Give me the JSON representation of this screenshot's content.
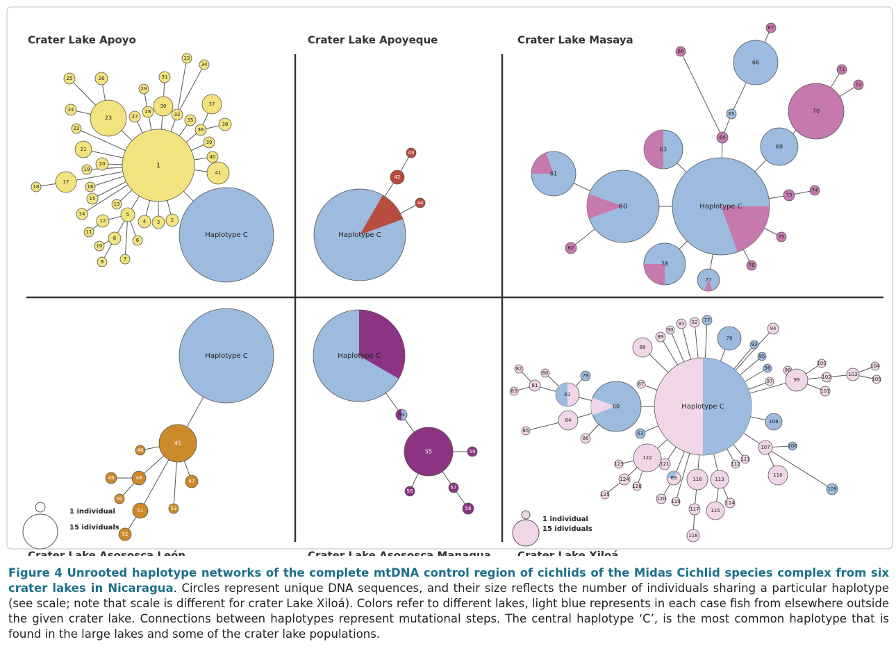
{
  "panels": [
    {
      "title": "Crater Lake Apoyo",
      "nodes": [
        "1",
        "Haplotype C",
        "2",
        "3",
        "4",
        "5",
        "6",
        "7",
        "8",
        "9",
        "10",
        "11",
        "12",
        "13",
        "14",
        "15",
        "16",
        "17",
        "18",
        "19",
        "20",
        "21",
        "22",
        "23",
        "24",
        "25",
        "26",
        "27",
        "28",
        "29",
        "30",
        "31",
        "32",
        "33",
        "34",
        "35",
        "36",
        "37",
        "38",
        "39",
        "40",
        "41"
      ]
    },
    {
      "title": "Crater Lake Apoyeque",
      "nodes": [
        "Haplotype C",
        "42",
        "43",
        "44"
      ]
    },
    {
      "title": "Crater Lake Masaya",
      "nodes": [
        "Haplotype C",
        "60",
        "61",
        "62",
        "63",
        "64",
        "65",
        "66",
        "67",
        "68",
        "69",
        "70",
        "71",
        "72",
        "73",
        "74",
        "75",
        "76",
        "77",
        "78"
      ]
    },
    {
      "title": "Crater Lake Asososca León",
      "nodes": [
        "Haplotype C",
        "45",
        "46",
        "47",
        "48",
        "49",
        "50",
        "51",
        "52",
        "53"
      ],
      "legend": [
        "1 individual",
        "15 idividuals"
      ]
    },
    {
      "title": "Crater Lake Asososca Managua",
      "nodes": [
        "Haplotype C",
        "54",
        "55",
        "56",
        "57",
        "58",
        "59"
      ]
    },
    {
      "title": "Crater Lake Xiloá",
      "nodes": [
        "Haplotype C",
        "60",
        "61",
        "79",
        "80",
        "81",
        "82",
        "83",
        "84",
        "85",
        "86",
        "63",
        "87",
        "88",
        "89",
        "90",
        "91",
        "92",
        "77",
        "78",
        "94",
        "93",
        "95",
        "96",
        "97",
        "98",
        "99",
        "100",
        "101",
        "102",
        "103",
        "104",
        "105",
        "106",
        "107",
        "108",
        "109",
        "110",
        "111",
        "112",
        "113",
        "114",
        "115",
        "116",
        "117",
        "118",
        "119",
        "69",
        "120",
        "121",
        "122",
        "123",
        "124",
        "125",
        "126"
      ],
      "legend": [
        "1 individual",
        "15 idividuals"
      ]
    }
  ],
  "caption": {
    "bold": "Figure 4 Unrooted haplotype networks of the complete mtDNA control region of cichlids of the Midas Cichlid species complex from six crater lakes in Nicaragua",
    "text": ". Circles represent unique DNA sequences, and their size reflects the number of individuals sharing a particular haplotype (see scale; note that scale is different for crater Lake Xiloá). Colors refer to different lakes, light blue represents in each case fish from elsewhere outside the given crater lake. Connections between haplotypes represent mutational steps. The central haplotype ‘C’, is the most common haplotype that is found in the large lakes and some of the crater lake populations."
  }
}
